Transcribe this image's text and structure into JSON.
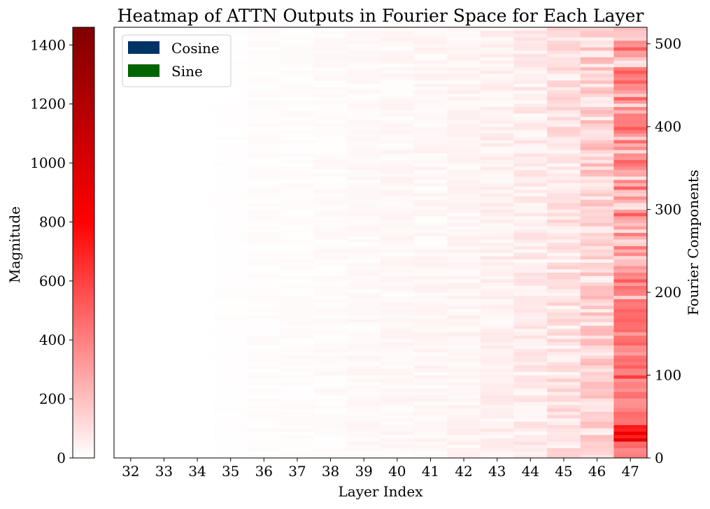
{
  "chart_data": {
    "type": "heatmap",
    "title": "Heatmap of ATTN Outputs in Fourier Space for Each Layer",
    "xlabel": "Layer Index",
    "ylabel": "Fourier Components",
    "colorbar": {
      "label": "Magnitude",
      "range": [
        0,
        1460
      ],
      "ticks": [
        0,
        200,
        400,
        600,
        800,
        1000,
        1200,
        1400
      ],
      "colormap": [
        "#ffffff",
        "#ff0000",
        "#800000"
      ]
    },
    "x_categories": [
      "32",
      "33",
      "34",
      "35",
      "36",
      "37",
      "38",
      "39",
      "40",
      "41",
      "42",
      "43",
      "44",
      "45",
      "46",
      "47"
    ],
    "y_range": [
      0,
      520
    ],
    "y_ticks": [
      0,
      100,
      200,
      300,
      400,
      500
    ],
    "legend": {
      "placement": "top-left",
      "entries": [
        {
          "label": "Cosine",
          "color": "#003366"
        },
        {
          "label": "Sine",
          "color": "#006400"
        }
      ]
    },
    "layer_mean_magnitude": [
      0,
      0,
      0,
      5,
      10,
      12,
      15,
      20,
      25,
      28,
      32,
      45,
      60,
      90,
      140,
      300
    ],
    "hotspots": [
      {
        "layer": "47",
        "component_range": [
          20,
          40
        ],
        "magnitude": 950
      },
      {
        "layer": "47",
        "component_range": [
          95,
          120
        ],
        "magnitude": 650
      },
      {
        "layer": "47",
        "component_range": [
          0,
          180
        ],
        "magnitude": 500
      }
    ]
  }
}
